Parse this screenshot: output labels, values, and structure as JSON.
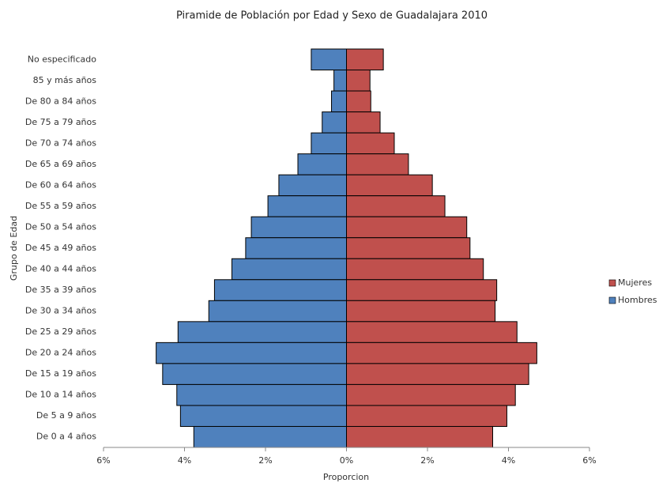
{
  "chart_data": {
    "type": "pyramid",
    "title": "Piramide de Población por Edad y Sexo de Guadalajara 2010",
    "x_label": "Proporcion",
    "y_label": "Grupo de Edad",
    "categories": [
      "No especificado",
      "85 y más años",
      "De 80 a 84 años",
      "De 75 a 79 años",
      "De 70 a 74 años",
      "De 65 a 69 años",
      "De 60 a 64 años",
      "De 55 a 59 años",
      "De 50 a 54 años",
      "De 45 a 49 años",
      "De 40 a 44 años",
      "De 35 a 39 años",
      "De 30 a 34 años",
      "De 25 a 29 años",
      "De 20 a 24 años",
      "De 15 a 19 años",
      "De 10 a 14 años",
      "De 5 a 9 años",
      "De 0 a 4 años"
    ],
    "series": [
      {
        "name": "Mujeres",
        "color": "#c0504d",
        "values": [
          0.91,
          0.58,
          0.6,
          0.83,
          1.18,
          1.53,
          2.12,
          2.43,
          2.97,
          3.05,
          3.38,
          3.71,
          3.67,
          4.21,
          4.7,
          4.5,
          4.17,
          3.96,
          3.61
        ]
      },
      {
        "name": "Hombres",
        "color": "#4f81bd",
        "values": [
          -0.87,
          -0.31,
          -0.37,
          -0.6,
          -0.87,
          -1.2,
          -1.67,
          -1.94,
          -2.35,
          -2.49,
          -2.83,
          -3.26,
          -3.4,
          -4.16,
          -4.7,
          -4.54,
          -4.19,
          -4.1,
          -3.77
        ]
      }
    ],
    "xlim": [
      -6,
      6
    ],
    "xticks": [
      {
        "value": -6,
        "label": "6%"
      },
      {
        "value": -4,
        "label": "4%"
      },
      {
        "value": -2,
        "label": "2%"
      },
      {
        "value": 0,
        "label": "0%"
      },
      {
        "value": 2,
        "label": "2%"
      },
      {
        "value": 4,
        "label": "4%"
      },
      {
        "value": 6,
        "label": "6%"
      }
    ],
    "legend": "right"
  }
}
